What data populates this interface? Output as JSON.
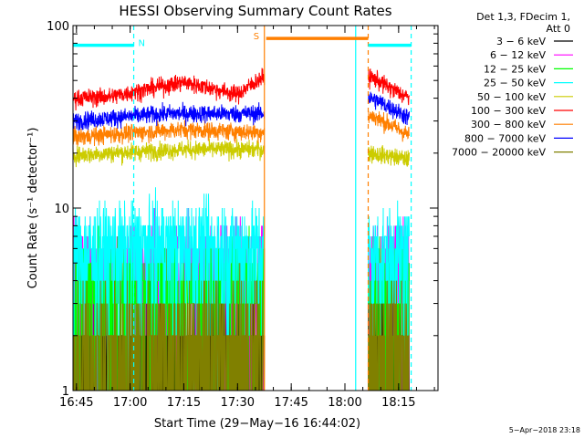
{
  "chart_data": {
    "type": "line",
    "title": "HESSI Observing Summary Count Rates",
    "xlabel": "Start Time (29−May−16 16:44:02)",
    "ylabel": "Count Rate (s⁻¹ detector⁻¹)",
    "ylog": true,
    "ylim": [
      1,
      100
    ],
    "xlim": [
      "16:44:02",
      "18:26:00"
    ],
    "x_ticks": [
      "16:45",
      "17:00",
      "17:15",
      "17:30",
      "17:45",
      "18:00",
      "18:15"
    ],
    "y_ticks": [
      "1",
      "10",
      "100"
    ],
    "grid": false,
    "legend_position": "top-right outside",
    "legend_header": [
      "Det 1,3, FDecim 1,",
      "Att 0"
    ],
    "timestamp": "5−Apr−2018 23:18",
    "gaps": [
      [
        "17:37:30",
        "18:06:30"
      ]
    ],
    "bars": [
      {
        "label": "N",
        "color": "#00ffff",
        "start": "16:44:02",
        "end": "17:01:00",
        "y": 78
      },
      {
        "label": "S",
        "color": "#ff7f00",
        "start": "17:38:00",
        "end": "18:06:30",
        "y": 85
      },
      {
        "label": "",
        "color": "#00ffff",
        "start": "18:06:30",
        "end": "18:18:30",
        "y": 78
      }
    ],
    "vlines": [
      {
        "time": "17:01:00",
        "color": "#00ffff",
        "dashed": true
      },
      {
        "time": "17:37:30",
        "color": "#ff7f00",
        "dashed": false
      },
      {
        "time": "18:03:00",
        "color": "#00ffff",
        "dashed": false
      },
      {
        "time": "18:06:30",
        "color": "#ff7f00",
        "dashed": true
      },
      {
        "time": "18:18:30",
        "color": "#00ffff",
        "dashed": true
      }
    ],
    "series": [
      {
        "name": "3 − 6 keV",
        "color": "#000000",
        "profile": [
          [
            "16:44:02",
            1.5
          ],
          [
            "17:37:30",
            1.5
          ],
          [
            "18:07:30",
            1.5
          ],
          [
            "18:18:00",
            1.5
          ]
        ]
      },
      {
        "name": "6 − 12 keV",
        "color": "#ff00ff",
        "profile": [
          [
            "16:44:02",
            4.6
          ],
          [
            "17:37:30",
            4.6
          ],
          [
            "18:07:30",
            4.6
          ],
          [
            "18:18:00",
            4.6
          ]
        ]
      },
      {
        "name": "12 − 25 keV",
        "color": "#00ff00",
        "profile": [
          [
            "16:44:02",
            3.6
          ],
          [
            "17:37:30",
            3.6
          ],
          [
            "18:07:30",
            3.4
          ],
          [
            "18:18:00",
            3.4
          ]
        ]
      },
      {
        "name": "25 − 50 keV",
        "color": "#00ffff",
        "profile": [
          [
            "16:44:02",
            5.6
          ],
          [
            "17:10:00",
            6.2
          ],
          [
            "17:37:30",
            6.0
          ],
          [
            "18:07:30",
            5.5
          ],
          [
            "18:18:00",
            5.5
          ]
        ]
      },
      {
        "name": "50 − 100 keV",
        "color": "#cccc00",
        "profile": [
          [
            "16:44:02",
            19.5
          ],
          [
            "17:15:00",
            21
          ],
          [
            "17:37:30",
            21
          ],
          [
            "18:07:30",
            20
          ],
          [
            "18:18:00",
            18.5
          ]
        ]
      },
      {
        "name": "100 − 300 keV",
        "color": "#ff0000",
        "profile": [
          [
            "16:44:02",
            40
          ],
          [
            "16:55:00",
            41
          ],
          [
            "17:15:00",
            49
          ],
          [
            "17:30:00",
            42
          ],
          [
            "17:37:00",
            52
          ],
          [
            "18:07:30",
            52
          ],
          [
            "18:13:00",
            45
          ],
          [
            "18:18:00",
            40
          ]
        ]
      },
      {
        "name": "300 − 800 keV",
        "color": "#ff7f00",
        "profile": [
          [
            "16:44:02",
            24.5
          ],
          [
            "17:15:00",
            27
          ],
          [
            "17:37:00",
            26
          ],
          [
            "18:07:30",
            32
          ],
          [
            "18:18:00",
            25
          ]
        ]
      },
      {
        "name": "800 − 7000 keV",
        "color": "#0000ff",
        "profile": [
          [
            "16:44:02",
            30
          ],
          [
            "17:10:00",
            33
          ],
          [
            "17:37:00",
            33
          ],
          [
            "18:07:30",
            40
          ],
          [
            "18:18:00",
            31
          ]
        ]
      },
      {
        "name": "7000 − 20000 keV",
        "color": "#808000",
        "profile": [
          [
            "16:44:02",
            1.4
          ],
          [
            "17:37:30",
            1.4
          ],
          [
            "18:07:30",
            1.5
          ],
          [
            "18:18:00",
            1.5
          ]
        ]
      }
    ]
  }
}
